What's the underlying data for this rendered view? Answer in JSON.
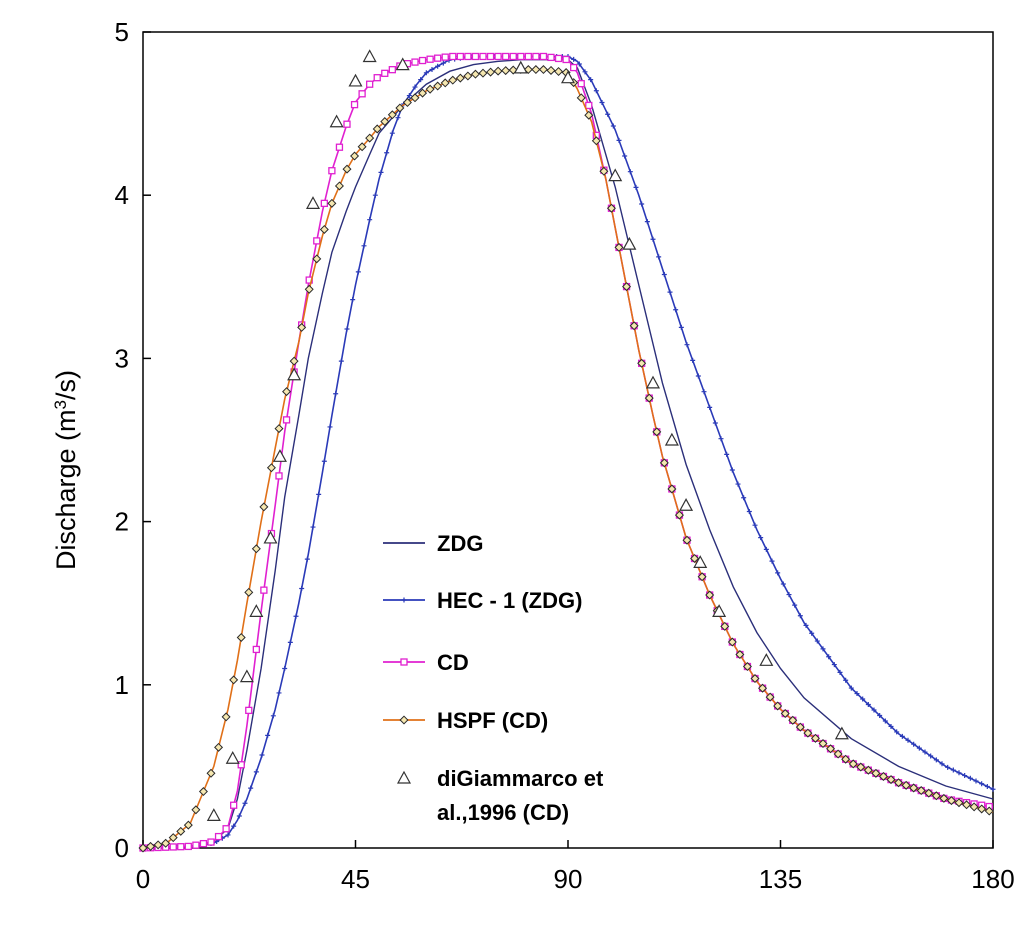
{
  "chart_data": {
    "type": "line",
    "title": "",
    "xlabel": "",
    "ylabel": "Discharge (m",
    "ylabel_sup": "3",
    "ylabel_tail": "/s)",
    "xlim": [
      0,
      180
    ],
    "ylim": [
      0,
      5
    ],
    "x_ticks": [
      0,
      45,
      90,
      135,
      180
    ],
    "y_ticks": [
      0,
      1,
      2,
      3,
      4,
      5
    ],
    "grid": false,
    "legend_position": "center-bottom",
    "series": [
      {
        "name": "ZDG",
        "color": "#2b2f7a",
        "marker": "none",
        "x": [
          0,
          10,
          15,
          18,
          20,
          22,
          25,
          28,
          30,
          33,
          35,
          38,
          40,
          43,
          45,
          48,
          50,
          55,
          60,
          65,
          70,
          75,
          80,
          85,
          90,
          92,
          95,
          100,
          105,
          110,
          115,
          120,
          125,
          130,
          135,
          140,
          150,
          160,
          170,
          180
        ],
        "y": [
          0,
          0.01,
          0.04,
          0.12,
          0.3,
          0.6,
          1.1,
          1.7,
          2.15,
          2.65,
          3.0,
          3.4,
          3.65,
          3.9,
          4.05,
          4.25,
          4.38,
          4.55,
          4.68,
          4.76,
          4.8,
          4.82,
          4.83,
          4.83,
          4.83,
          4.78,
          4.55,
          4.05,
          3.45,
          2.85,
          2.35,
          1.95,
          1.6,
          1.32,
          1.1,
          0.92,
          0.67,
          0.5,
          0.38,
          0.3
        ]
      },
      {
        "name": "HEC - 1 (ZDG)",
        "color": "#2a3ab8",
        "marker": "cross",
        "x": [
          0,
          10,
          15,
          18,
          20,
          22,
          25,
          28,
          30,
          33,
          35,
          38,
          40,
          43,
          45,
          48,
          50,
          53,
          55,
          58,
          60,
          63,
          65,
          70,
          75,
          80,
          85,
          90,
          92,
          95,
          98,
          100,
          105,
          110,
          115,
          120,
          125,
          130,
          135,
          140,
          150,
          160,
          170,
          180
        ],
        "y": [
          0,
          0.01,
          0.03,
          0.08,
          0.17,
          0.3,
          0.55,
          0.85,
          1.1,
          1.5,
          1.8,
          2.3,
          2.65,
          3.15,
          3.45,
          3.85,
          4.1,
          4.4,
          4.55,
          4.68,
          4.75,
          4.8,
          4.83,
          4.85,
          4.85,
          4.85,
          4.85,
          4.85,
          4.82,
          4.7,
          4.52,
          4.4,
          4.0,
          3.55,
          3.1,
          2.7,
          2.3,
          1.95,
          1.65,
          1.38,
          0.98,
          0.7,
          0.5,
          0.36
        ]
      },
      {
        "name": "CD",
        "color": "#e020d0",
        "marker": "square",
        "x": [
          0,
          10,
          15,
          18,
          20,
          22,
          25,
          28,
          30,
          33,
          35,
          38,
          40,
          43,
          45,
          48,
          50,
          55,
          60,
          65,
          70,
          75,
          80,
          85,
          90,
          92,
          95,
          98,
          100,
          103,
          105,
          108,
          110,
          115,
          120,
          125,
          130,
          135,
          140,
          150,
          160,
          170,
          180
        ],
        "y": [
          0,
          0.01,
          0.04,
          0.13,
          0.35,
          0.75,
          1.45,
          2.1,
          2.55,
          3.1,
          3.45,
          3.9,
          4.15,
          4.42,
          4.57,
          4.68,
          4.73,
          4.8,
          4.83,
          4.85,
          4.85,
          4.85,
          4.85,
          4.85,
          4.83,
          4.75,
          4.5,
          4.1,
          3.8,
          3.35,
          3.05,
          2.65,
          2.4,
          1.9,
          1.55,
          1.25,
          1.02,
          0.85,
          0.72,
          0.52,
          0.4,
          0.3,
          0.25
        ]
      },
      {
        "name": "HSPF (CD)",
        "color": "#e07018",
        "marker": "diamond",
        "x": [
          0,
          5,
          10,
          15,
          18,
          20,
          22,
          25,
          28,
          30,
          33,
          35,
          38,
          40,
          43,
          45,
          48,
          50,
          55,
          60,
          65,
          70,
          75,
          80,
          85,
          90,
          92,
          95,
          98,
          100,
          103,
          105,
          108,
          110,
          115,
          120,
          125,
          130,
          135,
          140,
          150,
          160,
          170,
          180
        ],
        "y": [
          0,
          0.03,
          0.15,
          0.5,
          0.85,
          1.15,
          1.5,
          2.0,
          2.45,
          2.75,
          3.1,
          3.4,
          3.75,
          3.95,
          4.15,
          4.25,
          4.35,
          4.42,
          4.55,
          4.64,
          4.7,
          4.74,
          4.76,
          4.77,
          4.77,
          4.75,
          4.65,
          4.45,
          4.1,
          3.8,
          3.35,
          3.05,
          2.65,
          2.4,
          1.9,
          1.55,
          1.25,
          1.02,
          0.85,
          0.72,
          0.52,
          0.4,
          0.3,
          0.22
        ]
      },
      {
        "name": "diGiammarco et al.,1996 (CD)",
        "name_lines": [
          "diGiammarco et",
          "al.,1996 (CD)"
        ],
        "color": "#333333",
        "marker": "triangle",
        "x": [
          15,
          19,
          22,
          24,
          27,
          29,
          32,
          36,
          41,
          45,
          48,
          55,
          80,
          90,
          100,
          103,
          108,
          112,
          115,
          118,
          122,
          132,
          148
        ],
        "y": [
          0.2,
          0.55,
          1.05,
          1.45,
          1.9,
          2.4,
          2.9,
          3.95,
          4.45,
          4.7,
          4.85,
          4.8,
          4.78,
          4.72,
          4.12,
          3.7,
          2.85,
          2.5,
          2.1,
          1.75,
          1.45,
          1.15,
          0.7
        ]
      }
    ]
  }
}
